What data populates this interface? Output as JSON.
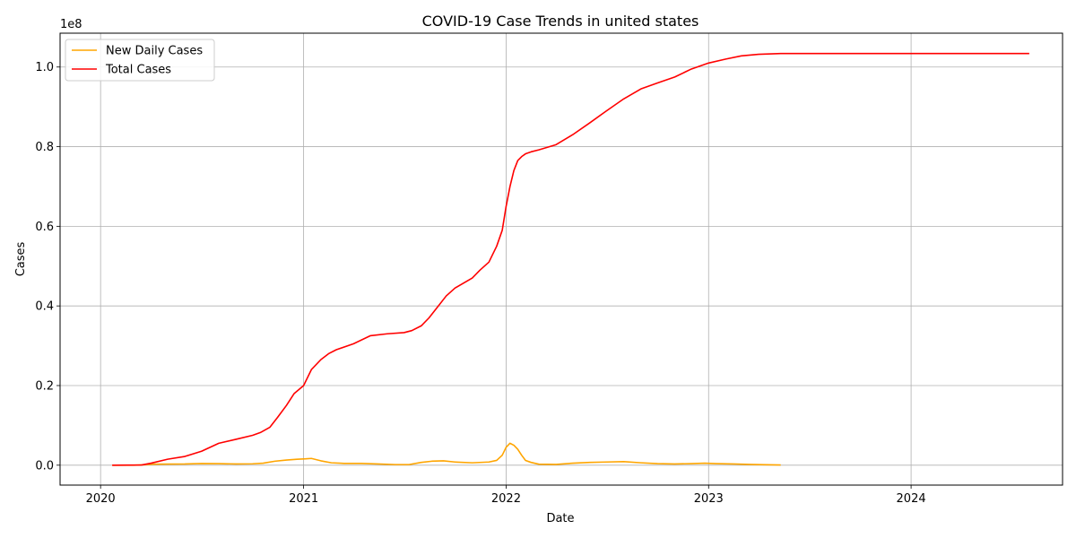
{
  "chart_data": {
    "type": "line",
    "title": "COVID-19 Case Trends in united states",
    "xlabel": "Date",
    "ylabel": "Cases",
    "y_offset_label": "1e8",
    "x_ticks": [
      "2020",
      "2021",
      "2022",
      "2023",
      "2024"
    ],
    "y_ticks": [
      "0.0",
      "0.2",
      "0.4",
      "0.6",
      "0.8",
      "1.0"
    ],
    "y_tick_values": [
      0,
      20000000,
      40000000,
      60000000,
      80000000,
      100000000
    ],
    "xlim": [
      "2019-10-20",
      "2024-09-30"
    ],
    "ylim": [
      -5000000,
      108500000
    ],
    "grid": true,
    "legend_position": "top-left",
    "series": [
      {
        "name": "New Daily Cases",
        "color": "#ffa500",
        "x": [
          "2020-01-22",
          "2020-03-01",
          "2020-03-20",
          "2020-04-05",
          "2020-05-01",
          "2020-06-01",
          "2020-07-01",
          "2020-08-01",
          "2020-09-01",
          "2020-10-01",
          "2020-10-20",
          "2020-11-10",
          "2020-12-01",
          "2020-12-20",
          "2021-01-05",
          "2021-01-15",
          "2021-02-01",
          "2021-02-20",
          "2021-03-15",
          "2021-04-15",
          "2021-05-15",
          "2021-06-15",
          "2021-07-10",
          "2021-08-01",
          "2021-08-20",
          "2021-09-10",
          "2021-10-01",
          "2021-11-01",
          "2021-12-01",
          "2021-12-15",
          "2021-12-25",
          "2022-01-01",
          "2022-01-08",
          "2022-01-15",
          "2022-01-22",
          "2022-01-29",
          "2022-02-05",
          "2022-02-15",
          "2022-03-01",
          "2022-04-01",
          "2022-05-01",
          "2022-06-01",
          "2022-07-01",
          "2022-08-01",
          "2022-09-01",
          "2022-10-01",
          "2022-11-01",
          "2022-12-01",
          "2022-12-25",
          "2023-01-15",
          "2023-02-15",
          "2023-03-15",
          "2023-04-15",
          "2023-05-11"
        ],
        "values": [
          0,
          0,
          100000,
          250000,
          280000,
          300000,
          420000,
          400000,
          300000,
          350000,
          500000,
          1000000,
          1300000,
          1500000,
          1600000,
          1700000,
          1100000,
          600000,
          450000,
          450000,
          300000,
          150000,
          150000,
          700000,
          1000000,
          1100000,
          800000,
          600000,
          800000,
          1200000,
          2500000,
          4500000,
          5500000,
          5000000,
          4000000,
          2500000,
          1200000,
          700000,
          250000,
          200000,
          500000,
          700000,
          800000,
          900000,
          600000,
          400000,
          300000,
          400000,
          500000,
          400000,
          300000,
          200000,
          100000,
          50000
        ]
      },
      {
        "name": "Total Cases",
        "color": "#ff0000",
        "x": [
          "2020-01-22",
          "2020-03-15",
          "2020-04-01",
          "2020-05-01",
          "2020-06-01",
          "2020-07-01",
          "2020-08-01",
          "2020-09-01",
          "2020-10-01",
          "2020-10-15",
          "2020-11-01",
          "2020-11-15",
          "2020-12-01",
          "2020-12-15",
          "2021-01-01",
          "2021-01-15",
          "2021-02-01",
          "2021-02-15",
          "2021-03-01",
          "2021-04-01",
          "2021-05-01",
          "2021-06-01",
          "2021-07-01",
          "2021-07-15",
          "2021-08-01",
          "2021-08-15",
          "2021-09-01",
          "2021-09-15",
          "2021-10-01",
          "2021-11-01",
          "2021-11-15",
          "2021-12-01",
          "2021-12-15",
          "2021-12-25",
          "2022-01-01",
          "2022-01-08",
          "2022-01-15",
          "2022-01-22",
          "2022-01-29",
          "2022-02-05",
          "2022-02-15",
          "2022-03-01",
          "2022-04-01",
          "2022-05-01",
          "2022-06-01",
          "2022-07-01",
          "2022-08-01",
          "2022-09-01",
          "2022-10-01",
          "2022-11-01",
          "2022-12-01",
          "2023-01-01",
          "2023-02-01",
          "2023-03-01",
          "2023-04-01",
          "2023-05-11",
          "2023-07-01",
          "2024-01-01",
          "2024-08-01"
        ],
        "values": [
          0,
          50000,
          500000,
          1500000,
          2200000,
          3500000,
          5500000,
          6500000,
          7500000,
          8200000,
          9500000,
          12000000,
          15000000,
          18000000,
          20000000,
          24000000,
          26500000,
          28000000,
          29000000,
          30500000,
          32500000,
          33000000,
          33300000,
          33800000,
          35000000,
          37000000,
          40000000,
          42500000,
          44500000,
          47000000,
          49000000,
          51000000,
          55000000,
          59000000,
          65000000,
          70000000,
          74000000,
          76500000,
          77500000,
          78200000,
          78700000,
          79200000,
          80500000,
          83000000,
          86000000,
          89000000,
          92000000,
          94500000,
          96000000,
          97500000,
          99500000,
          101000000,
          102000000,
          102800000,
          103200000,
          103400000,
          103400000,
          103400000,
          103400000
        ]
      }
    ]
  }
}
